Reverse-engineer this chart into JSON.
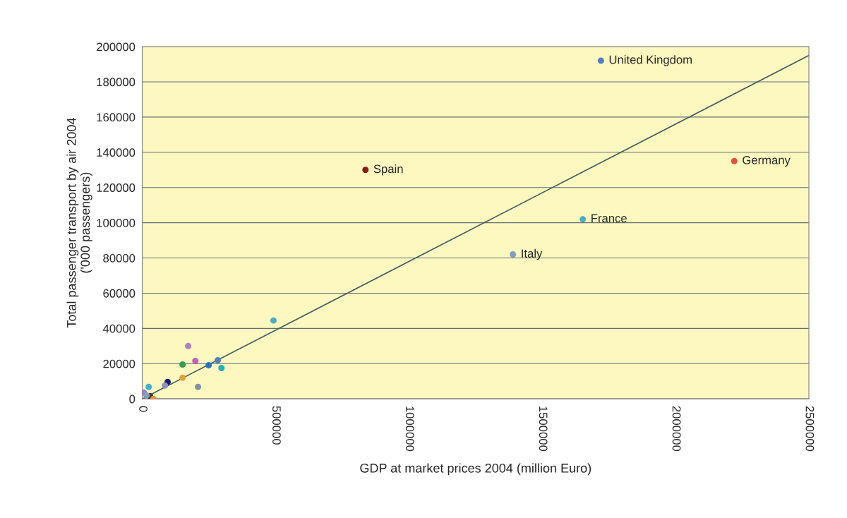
{
  "chart_data": {
    "type": "scatter",
    "xlabel": "GDP at market prices 2004 (million Euro)",
    "ylabel": "Total passenger transport by air 2004\n('000 passengers)",
    "xlim": [
      0,
      2500000
    ],
    "xticks": [
      0,
      500000,
      1000000,
      1500000,
      2000000,
      2500000
    ],
    "ylim": [
      0,
      200000
    ],
    "yticks": [
      0,
      20000,
      40000,
      60000,
      80000,
      100000,
      120000,
      140000,
      160000,
      180000,
      200000
    ],
    "grid": "y",
    "series": [
      {
        "marker": "circle",
        "x": [
          1720000,
          2220000,
          837000,
          1652000,
          1390000,
          492000,
          172000,
          199000,
          151000,
          151000,
          249000,
          283000,
          297000,
          209000,
          95000,
          85000,
          24000,
          6000,
          29000,
          42000,
          16000
        ],
        "values": [
          192000,
          135000,
          130000,
          102000,
          82000,
          44500,
          30000,
          21500,
          19500,
          12000,
          19100,
          21900,
          17500,
          6800,
          9600,
          7600,
          6800,
          3600,
          1600,
          0,
          2000
        ],
        "colors": [
          "#4f81bd",
          "#e8503a",
          "#8b1a1a",
          "#4bacc6",
          "#7fa0c0",
          "#4bacc6",
          "#b080c0",
          "#c060c0",
          "#30a050",
          "#e0a040",
          "#3070c0",
          "#5080c0",
          "#20b0c0",
          "#8090a0",
          "#102070",
          "#9090c0",
          "#40b0d0",
          "#a080d0",
          "#503030",
          "#f09030",
          "#80a0c0"
        ]
      },
      {
        "type": "line",
        "x": [
          0,
          2500000
        ],
        "values": [
          0,
          195000
        ],
        "color": "#406060",
        "line_style": "solid"
      }
    ],
    "annotations": [
      {
        "text": "United Kingdom",
        "x": 1720000,
        "y": 192000
      },
      {
        "text": "Germany",
        "x": 2220000,
        "y": 135000
      },
      {
        "text": "Spain",
        "x": 837000,
        "y": 130000
      },
      {
        "text": "France",
        "x": 1652000,
        "y": 102000
      },
      {
        "text": "Italy",
        "x": 1390000,
        "y": 82000
      }
    ]
  }
}
